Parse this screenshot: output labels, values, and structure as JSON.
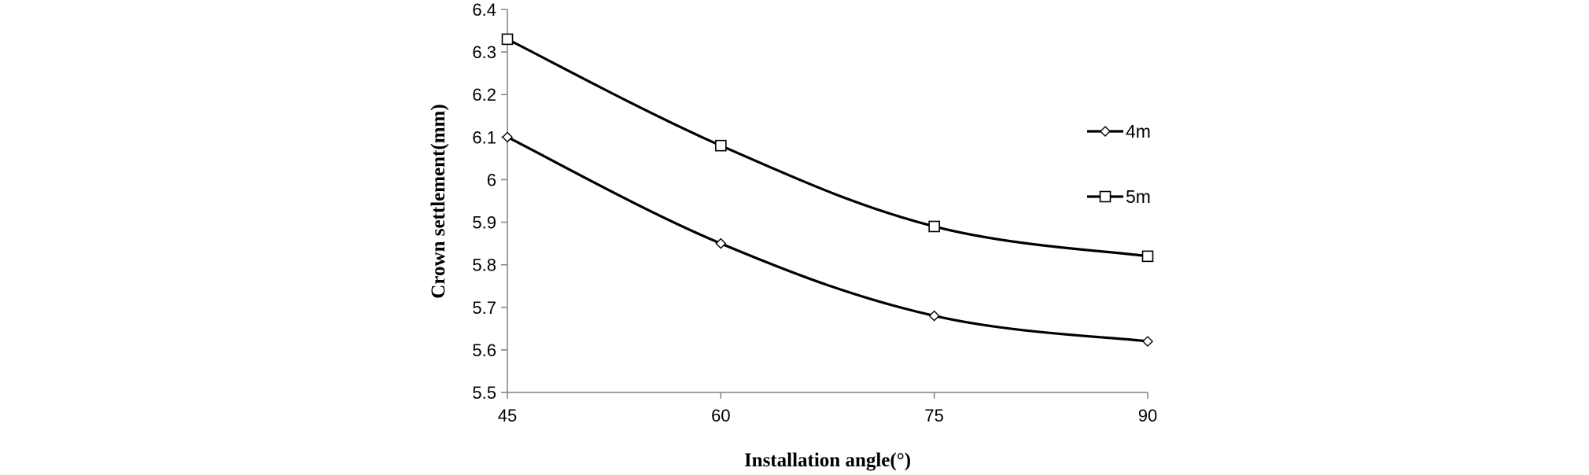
{
  "chart_data": {
    "type": "line",
    "title": "",
    "xlabel": "Installation angle(°)",
    "ylabel": "Crown settlement(mm)",
    "x": [
      45,
      60,
      75,
      90
    ],
    "x_tick_labels": [
      "45",
      "60",
      "75",
      "90"
    ],
    "y_tick_labels": [
      "5.5",
      "5.6",
      "5.7",
      "5.8",
      "5.9",
      "6",
      "6.1",
      "6.2",
      "6.3",
      "6.4"
    ],
    "ylim": [
      5.5,
      6.4
    ],
    "grid": false,
    "legend_position": "right",
    "series": [
      {
        "name": "4m",
        "values": [
          6.1,
          5.85,
          5.68,
          5.62
        ],
        "marker": "diamond",
        "color": "#000000"
      },
      {
        "name": "5m",
        "values": [
          6.33,
          6.08,
          5.89,
          5.82
        ],
        "marker": "square",
        "color": "#000000"
      }
    ]
  }
}
